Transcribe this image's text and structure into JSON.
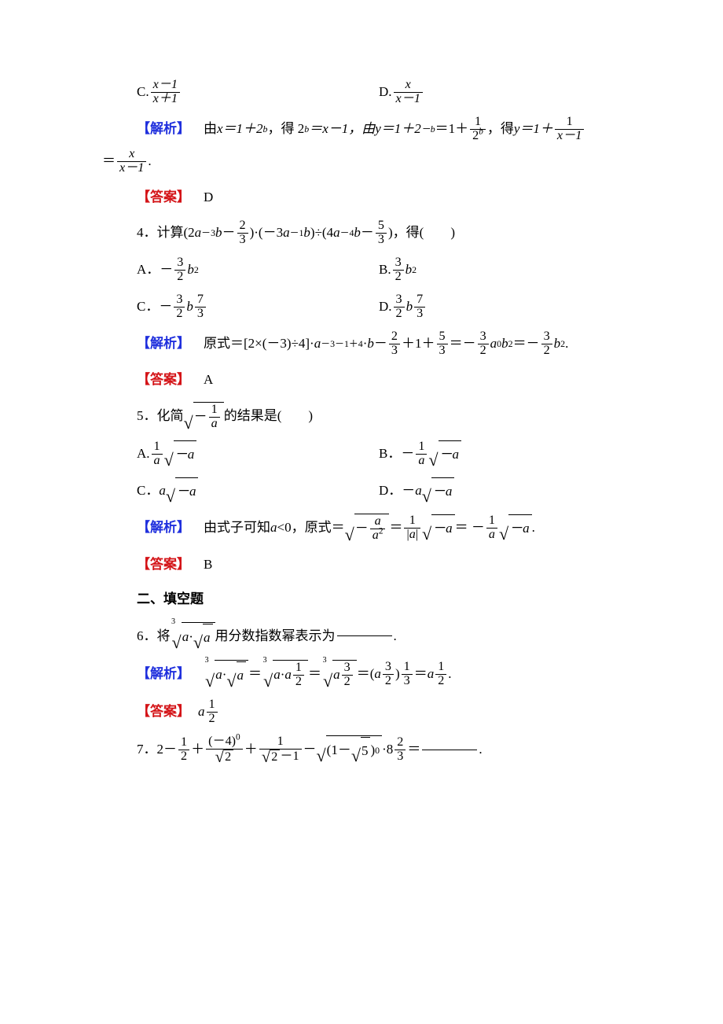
{
  "colors": {
    "text": "#000000",
    "label_blue": "#2030dd",
    "label_red": "#d41418",
    "background": "#ffffff"
  },
  "typography": {
    "base_font_size_pt": 13,
    "line_height": 1.9,
    "math_italic_font": "Times New Roman"
  },
  "labels": {
    "jiexi_open": "【解析】",
    "daan_open": "【答案】",
    "section2": "二、填空题"
  },
  "q3": {
    "optC_prefix": "C.",
    "optC_num": "x－1",
    "optC_den": "x＋1",
    "optD_prefix": "D.",
    "optD_num": "x",
    "optD_den": "x－1",
    "jiexi_pre": "　由 ",
    "jiexi_m1a": "x＝1＋2",
    "jiexi_m1exp": "b",
    "jiexi_m1b": "，得 2",
    "jiexi_m1exp2": "b",
    "jiexi_m1c": "＝x－1，由 ",
    "jiexi_m2a": "y＝1＋2",
    "jiexi_m2exp": "－b",
    "jiexi_m2b": "＝1＋",
    "jiexi_frac_num": "1",
    "jiexi_frac_den_a": "2",
    "jiexi_frac_den_exp": "b",
    "jiexi_m2c": "，得 ",
    "jiexi_m3a": "y＝1＋",
    "jiexi_frac2_num": "1",
    "jiexi_frac2_den": "x－1",
    "jiexi_line2_eq": "＝",
    "jiexi_line2_num": "x",
    "jiexi_line2_den": "x－1",
    "jiexi_line2_end": ".",
    "answer": "　D"
  },
  "q4": {
    "stem_no": "4．计算(2",
    "stem_a": "a",
    "stem_exp1": "－3",
    "stem_b1": "b",
    "stem_frac1_pre": "－",
    "stem_frac1_num": "2",
    "stem_frac1_den": "3",
    "stem_mid1": ")·(－3",
    "stem_exp2": "－1",
    "stem_b2": "b",
    "stem_mid2": ")÷(4",
    "stem_exp3": "－4",
    "stem_b3": "b",
    "stem_frac2_pre": "－",
    "stem_frac2_num": "5",
    "stem_frac2_den": "3",
    "stem_end": ")，得(　　)",
    "optA_prefix": "A．－",
    "optA_num": "3",
    "optA_den": "2",
    "optA_suffix_b": "b",
    "optA_suffix_exp": "2",
    "optB_prefix": "B.",
    "optB_num": "3",
    "optB_den": "2",
    "optB_suffix_b": "b",
    "optB_suffix_exp": "2",
    "optC_prefix": "C．－",
    "optC_num": "3",
    "optC_den": "2",
    "optC_mid_b": "b",
    "optC_num2": "7",
    "optC_den2": "3",
    "optD_prefix": "D.",
    "optD_num": "3",
    "optD_den": "2",
    "optD_mid_b": "b",
    "optD_num2": "7",
    "optD_den2": "3",
    "jiexi_pre": "　原式＝[2×(－3)÷4]·",
    "jiexi_a": "a",
    "jiexi_exp1": "－3－1＋4",
    "jiexi_mid1": "·",
    "jiexi_b": "b",
    "jiexi_mid2": "－",
    "jiexi_f1n": "2",
    "jiexi_f1d": "3",
    "jiexi_mid3": "＋1＋",
    "jiexi_f2n": "5",
    "jiexi_f2d": "3",
    "jiexi_eq1": "＝－",
    "jiexi_f3n": "3",
    "jiexi_f3d": "2",
    "jiexi_a0": "a",
    "jiexi_a0exp": "0",
    "jiexi_b2": "b",
    "jiexi_b2exp": "2",
    "jiexi_eq2": "＝－",
    "jiexi_f4n": "3",
    "jiexi_f4d": "2",
    "jiexi_b3": "b",
    "jiexi_b3exp": "2",
    "jiexi_end": ".",
    "answer": "　A"
  },
  "q5": {
    "stem_no": "5．化简",
    "sqrt_idx": "",
    "sqrt_inner_pre": "－",
    "sqrt_inner_num": "1",
    "sqrt_inner_den": "a",
    "stem_end": "的结果是(　　)",
    "optA_prefix": "A.",
    "optA_num": "1",
    "optA_den": "a",
    "sqrt_neg_a": "－a",
    "optB_prefix": "B．－",
    "optB_num": "1",
    "optB_den": "a",
    "optC_prefix": "C．",
    "optC_a": "a",
    "optD_prefix": "D．－",
    "optD_a": "a",
    "jiexi_pre": "　由式子可知 ",
    "jiexi_a": "a",
    "jiexi_lt0": "<0，原式＝",
    "jiexi_sqrt_pre": "－",
    "jiexi_sqrt_num": "a",
    "jiexi_sqrt_den_a": "a",
    "jiexi_sqrt_den_exp": "2",
    "jiexi_eq1": "＝",
    "jiexi_f2n": "1",
    "jiexi_f2d_pre": "|",
    "jiexi_f2d_a": "a",
    "jiexi_f2d_post": "|",
    "jiexi_eq2": "＝ －",
    "jiexi_f3n": "1",
    "jiexi_f3d": "a",
    "jiexi_end": ".",
    "answer": "　B"
  },
  "q6": {
    "stem_no": "6．将",
    "outer_idx": "3",
    "inner_a": "a",
    "dot": "·",
    "inner_sqrt_body": "a",
    "stem_end": "用分数指数幂表示为",
    "period": ".",
    "jiexi_sp": "　",
    "jiexi_eq": "＝",
    "jiexi_a1": "a",
    "jiexi_dot": "·",
    "jiexi_a2": "a",
    "jiexi_f1n": "1",
    "jiexi_f1d": "2",
    "jiexi_a3": "a",
    "jiexi_f2n": "3",
    "jiexi_f2d": "2",
    "jiexi_eqparen_open": "＝(",
    "jiexi_a4": "a",
    "jiexi_f3n": "3",
    "jiexi_f3d": "2",
    "jiexi_paren_close": ")",
    "jiexi_f4n": "1",
    "jiexi_f4d": "3",
    "jiexi_eq3": "＝",
    "jiexi_a5": "a",
    "jiexi_f5n": "1",
    "jiexi_f5d": "2",
    "jiexi_end": ".",
    "ans_a": "a",
    "ans_num": "1",
    "ans_den": "2"
  },
  "q7": {
    "stem_no": "7．2－",
    "f1n": "1",
    "f1d": "2",
    "plus1": "＋",
    "f2n_a": "(－4)",
    "f2n_exp": "0",
    "f2d_sqrt": "2",
    "plus2": "＋",
    "f3n": "1",
    "f3d_sqrt": "2",
    "f3d_post": "－1",
    "minus": "－",
    "sqrt4_a": "(1－",
    "sqrt4_inner_sqrt": "5",
    "sqrt4_b": ")",
    "sqrt4_exp": "0",
    "dot": "·8",
    "f5n": "2",
    "f5d": "3",
    "eq": "＝",
    "period": "."
  }
}
